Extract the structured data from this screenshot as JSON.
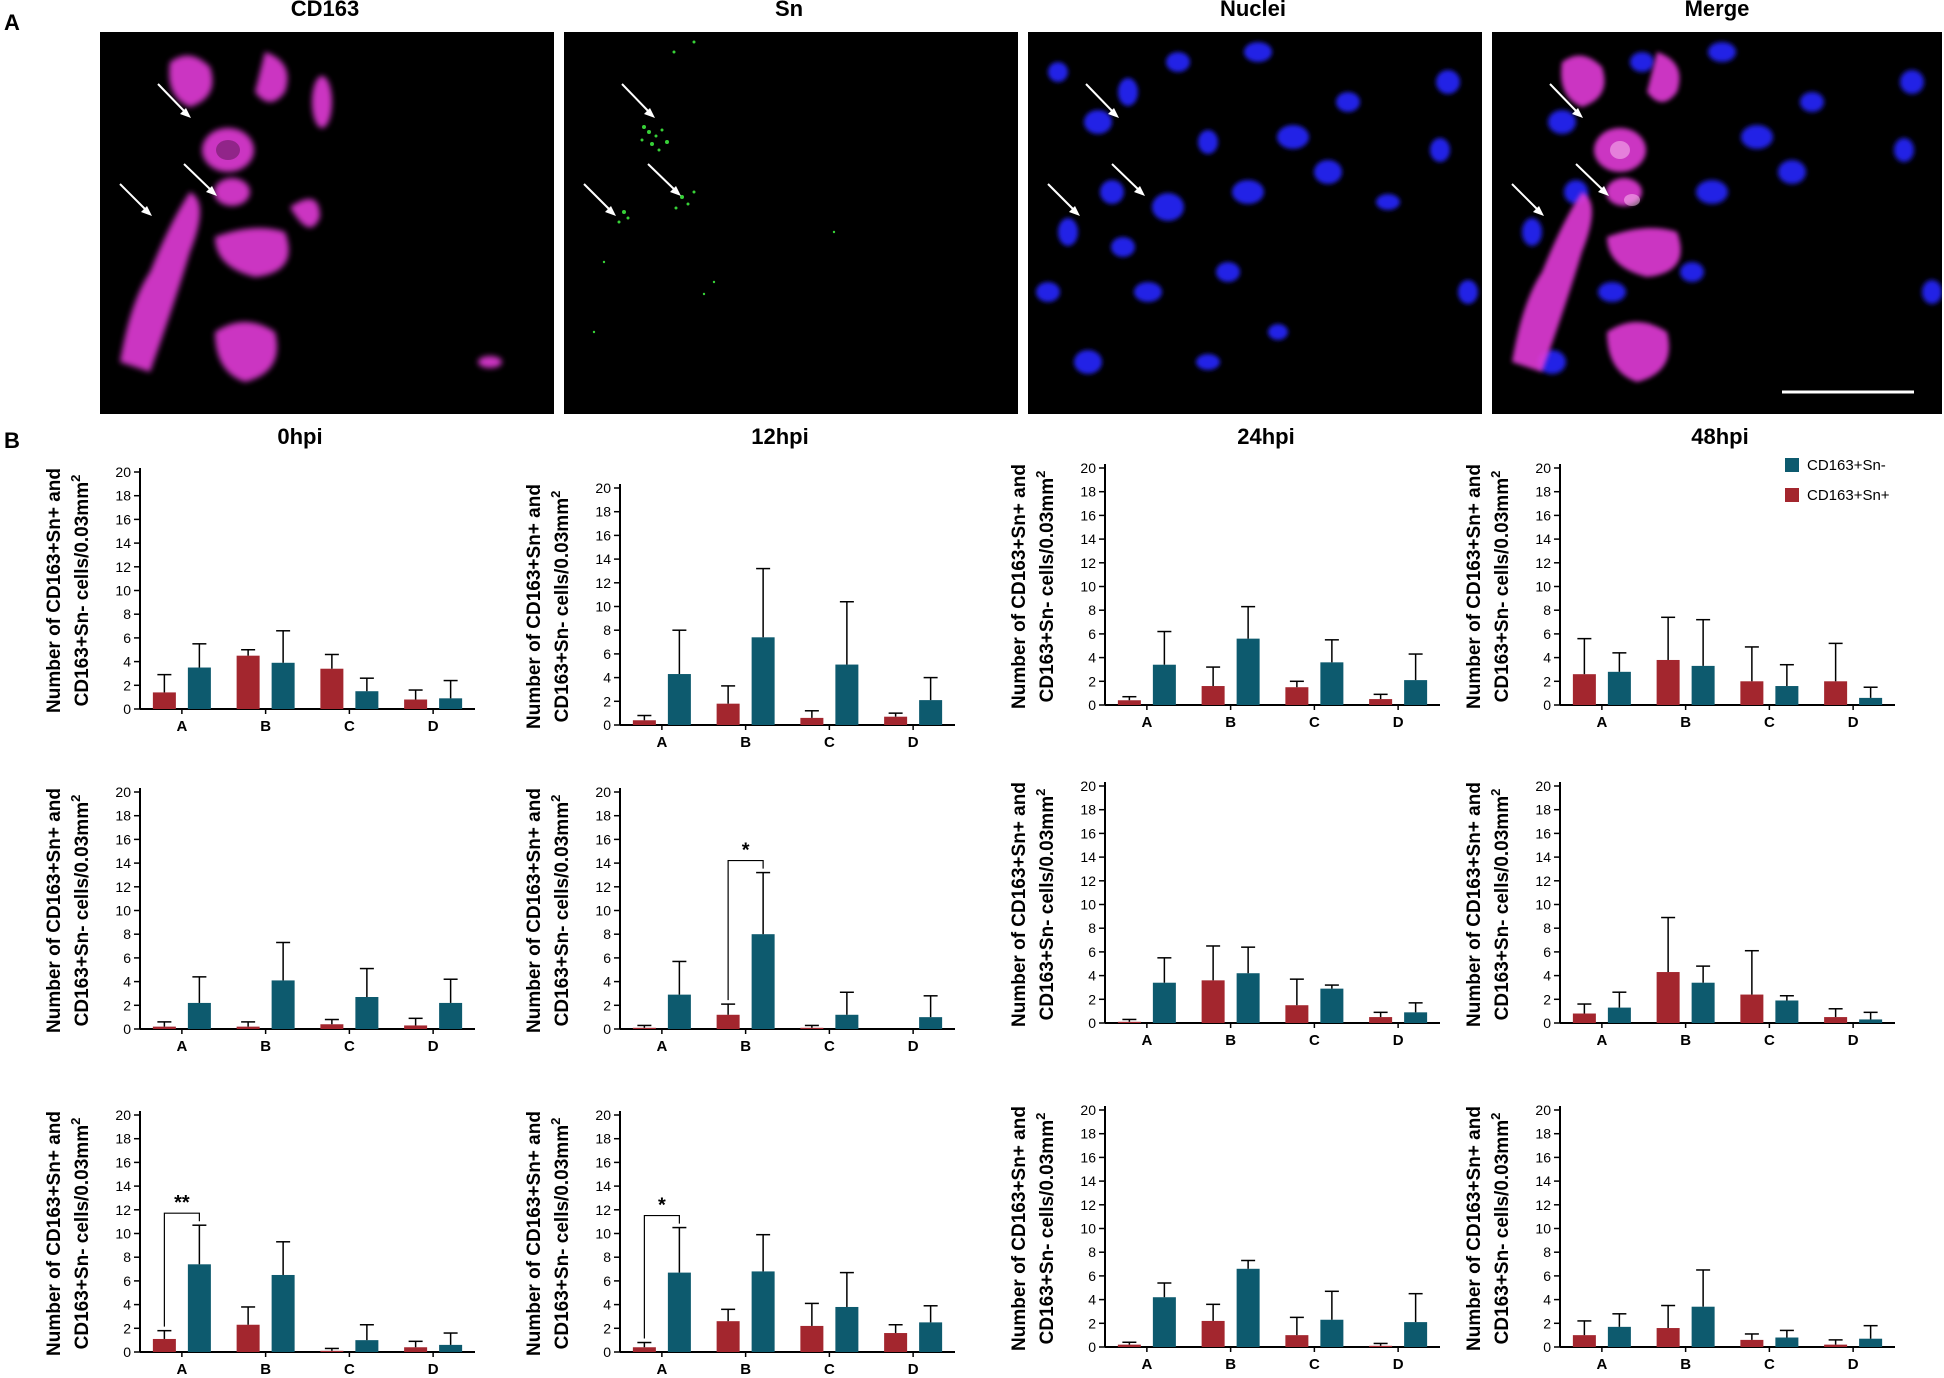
{
  "panel_a": {
    "letter": "A",
    "titles": [
      "CD163",
      "Sn",
      "Nuclei",
      "Merge"
    ]
  },
  "panel_b": {
    "letter": "B",
    "column_titles": [
      "0hpi",
      "12hpi",
      "24hpi",
      "48hpi"
    ],
    "legend": [
      {
        "label": "CD163+Sn-",
        "color": "#0d5a6e"
      },
      {
        "label": "CD163+Sn+",
        "color": "#a3262e"
      }
    ]
  },
  "chart_data": [
    {
      "type": "bar",
      "row": 0,
      "col": 0,
      "categories": [
        "A",
        "B",
        "C",
        "D"
      ],
      "ylim": [
        0,
        20
      ],
      "yticks": [
        0,
        2,
        4,
        6,
        8,
        10,
        12,
        14,
        16,
        18,
        20
      ],
      "ylabel": [
        "Number of CD163+Sn+ and",
        "CD163+Sn- cells/0.03mm",
        "2"
      ],
      "series": [
        {
          "name": "CD163+Sn+",
          "values": [
            1.4,
            4.5,
            3.4,
            0.8
          ],
          "errors": [
            1.5,
            0.5,
            1.2,
            0.8
          ]
        },
        {
          "name": "CD163+Sn-",
          "values": [
            3.5,
            3.9,
            1.5,
            0.9
          ],
          "errors": [
            2.0,
            2.7,
            1.1,
            1.5
          ]
        }
      ],
      "significance": []
    },
    {
      "type": "bar",
      "row": 0,
      "col": 1,
      "categories": [
        "A",
        "B",
        "C",
        "D"
      ],
      "ylim": [
        0,
        20
      ],
      "yticks": [
        0,
        2,
        4,
        6,
        8,
        10,
        12,
        14,
        16,
        18,
        20
      ],
      "ylabel": [
        "Number of CD163+Sn+ and",
        "CD163+Sn- cells/0.03mm",
        "2"
      ],
      "series": [
        {
          "name": "CD163+Sn+",
          "values": [
            0.4,
            1.8,
            0.6,
            0.7
          ],
          "errors": [
            0.4,
            1.5,
            0.6,
            0.3
          ]
        },
        {
          "name": "CD163+Sn-",
          "values": [
            4.3,
            7.4,
            5.1,
            2.1
          ],
          "errors": [
            3.7,
            5.8,
            5.3,
            1.9
          ]
        }
      ],
      "significance": []
    },
    {
      "type": "bar",
      "row": 0,
      "col": 2,
      "categories": [
        "A",
        "B",
        "C",
        "D"
      ],
      "ylim": [
        0,
        20
      ],
      "yticks": [
        0,
        2,
        4,
        6,
        8,
        10,
        12,
        14,
        16,
        18,
        20
      ],
      "ylabel": [
        "Number of CD163+Sn+ and",
        "CD163+Sn- cells/0.03mm",
        "2"
      ],
      "series": [
        {
          "name": "CD163+Sn+",
          "values": [
            0.4,
            1.6,
            1.5,
            0.5
          ],
          "errors": [
            0.3,
            1.6,
            0.5,
            0.4
          ]
        },
        {
          "name": "CD163+Sn-",
          "values": [
            3.4,
            5.6,
            3.6,
            2.1
          ],
          "errors": [
            2.8,
            2.7,
            1.9,
            2.2
          ]
        }
      ],
      "significance": []
    },
    {
      "type": "bar",
      "row": 0,
      "col": 3,
      "categories": [
        "A",
        "B",
        "C",
        "D"
      ],
      "ylim": [
        0,
        20
      ],
      "yticks": [
        0,
        2,
        4,
        6,
        8,
        10,
        12,
        14,
        16,
        18,
        20
      ],
      "ylabel": [
        "Number of CD163+Sn+ and",
        "CD163+Sn- cells/0.03mm",
        "2"
      ],
      "series": [
        {
          "name": "CD163+Sn+",
          "values": [
            2.6,
            3.8,
            2.0,
            2.0
          ],
          "errors": [
            3.0,
            3.6,
            2.9,
            3.2
          ]
        },
        {
          "name": "CD163+Sn-",
          "values": [
            2.8,
            3.3,
            1.6,
            0.6
          ],
          "errors": [
            1.6,
            3.9,
            1.8,
            0.9
          ]
        }
      ],
      "significance": []
    },
    {
      "type": "bar",
      "row": 1,
      "col": 0,
      "categories": [
        "A",
        "B",
        "C",
        "D"
      ],
      "ylim": [
        0,
        20
      ],
      "yticks": [
        0,
        2,
        4,
        6,
        8,
        10,
        12,
        14,
        16,
        18,
        20
      ],
      "ylabel": [
        "Number of CD163+Sn+ and",
        "CD163+Sn- cells/0.03mm",
        "2"
      ],
      "series": [
        {
          "name": "CD163+Sn+",
          "values": [
            0.2,
            0.2,
            0.4,
            0.3
          ],
          "errors": [
            0.4,
            0.4,
            0.4,
            0.6
          ]
        },
        {
          "name": "CD163+Sn-",
          "values": [
            2.2,
            4.1,
            2.7,
            2.2
          ],
          "errors": [
            2.2,
            3.2,
            2.4,
            2.0
          ]
        }
      ],
      "significance": []
    },
    {
      "type": "bar",
      "row": 1,
      "col": 1,
      "categories": [
        "A",
        "B",
        "C",
        "D"
      ],
      "ylim": [
        0,
        20
      ],
      "yticks": [
        0,
        2,
        4,
        6,
        8,
        10,
        12,
        14,
        16,
        18,
        20
      ],
      "ylabel": [
        "Number of CD163+Sn+ and",
        "CD163+Sn- cells/0.03mm",
        "2"
      ],
      "series": [
        {
          "name": "CD163+Sn+",
          "values": [
            0.1,
            1.2,
            0.1,
            0
          ],
          "errors": [
            0.2,
            0.9,
            0.2,
            0
          ]
        },
        {
          "name": "CD163+Sn-",
          "values": [
            2.9,
            8.0,
            1.2,
            1.0
          ],
          "errors": [
            2.8,
            5.2,
            1.9,
            1.8
          ]
        }
      ],
      "significance": [
        {
          "cat": 1,
          "text": "*"
        }
      ]
    },
    {
      "type": "bar",
      "row": 1,
      "col": 2,
      "categories": [
        "A",
        "B",
        "C",
        "D"
      ],
      "ylim": [
        0,
        20
      ],
      "yticks": [
        0,
        2,
        4,
        6,
        8,
        10,
        12,
        14,
        16,
        18,
        20
      ],
      "ylabel": [
        "Number of CD163+Sn+ and",
        "CD163+Sn- cells/0.03mm",
        "2"
      ],
      "series": [
        {
          "name": "CD163+Sn+",
          "values": [
            0.1,
            3.6,
            1.5,
            0.5
          ],
          "errors": [
            0.2,
            2.9,
            2.2,
            0.4
          ]
        },
        {
          "name": "CD163+Sn-",
          "values": [
            3.4,
            4.2,
            2.9,
            0.9
          ],
          "errors": [
            2.1,
            2.2,
            0.3,
            0.8
          ]
        }
      ],
      "significance": []
    },
    {
      "type": "bar",
      "row": 1,
      "col": 3,
      "categories": [
        "A",
        "B",
        "C",
        "D"
      ],
      "ylim": [
        0,
        20
      ],
      "yticks": [
        0,
        2,
        4,
        6,
        8,
        10,
        12,
        14,
        16,
        18,
        20
      ],
      "ylabel": [
        "Number of CD163+Sn+ and",
        "CD163+Sn- cells/0.03mm",
        "2"
      ],
      "series": [
        {
          "name": "CD163+Sn+",
          "values": [
            0.8,
            4.3,
            2.4,
            0.5
          ],
          "errors": [
            0.8,
            4.6,
            3.7,
            0.7
          ]
        },
        {
          "name": "CD163+Sn-",
          "values": [
            1.3,
            3.4,
            1.9,
            0.3
          ],
          "errors": [
            1.3,
            1.4,
            0.4,
            0.6
          ]
        }
      ],
      "significance": []
    },
    {
      "type": "bar",
      "row": 2,
      "col": 0,
      "categories": [
        "A",
        "B",
        "C",
        "D"
      ],
      "ylim": [
        0,
        20
      ],
      "yticks": [
        0,
        2,
        4,
        6,
        8,
        10,
        12,
        14,
        16,
        18,
        20
      ],
      "ylabel": [
        "Number of CD163+Sn+ and",
        "CD163+Sn- cells/0.03mm",
        "2"
      ],
      "series": [
        {
          "name": "CD163+Sn+",
          "values": [
            1.1,
            2.3,
            0.1,
            0.4
          ],
          "errors": [
            0.7,
            1.5,
            0.2,
            0.5
          ]
        },
        {
          "name": "CD163+Sn-",
          "values": [
            7.4,
            6.5,
            1.0,
            0.6
          ],
          "errors": [
            3.3,
            2.8,
            1.3,
            1.0
          ]
        }
      ],
      "significance": [
        {
          "cat": 0,
          "text": "**"
        }
      ]
    },
    {
      "type": "bar",
      "row": 2,
      "col": 1,
      "categories": [
        "A",
        "B",
        "C",
        "D"
      ],
      "ylim": [
        0,
        20
      ],
      "yticks": [
        0,
        2,
        4,
        6,
        8,
        10,
        12,
        14,
        16,
        18,
        20
      ],
      "ylabel": [
        "Number of CD163+Sn+ and",
        "CD163+Sn- cells/0.03mm",
        "2"
      ],
      "series": [
        {
          "name": "CD163+Sn+",
          "values": [
            0.4,
            2.6,
            2.2,
            1.6
          ],
          "errors": [
            0.4,
            1.0,
            1.9,
            0.7
          ]
        },
        {
          "name": "CD163+Sn-",
          "values": [
            6.7,
            6.8,
            3.8,
            2.5
          ],
          "errors": [
            3.8,
            3.1,
            2.9,
            1.4
          ]
        }
      ],
      "significance": [
        {
          "cat": 0,
          "text": "*"
        }
      ]
    },
    {
      "type": "bar",
      "row": 2,
      "col": 2,
      "categories": [
        "A",
        "B",
        "C",
        "D"
      ],
      "ylim": [
        0,
        20
      ],
      "yticks": [
        0,
        2,
        4,
        6,
        8,
        10,
        12,
        14,
        16,
        18,
        20
      ],
      "ylabel": [
        "Number of CD163+Sn+ and",
        "CD163+Sn- cells/0.03mm",
        "2"
      ],
      "series": [
        {
          "name": "CD163+Sn+",
          "values": [
            0.2,
            2.2,
            1.0,
            0.1
          ],
          "errors": [
            0.2,
            1.4,
            1.5,
            0.2
          ]
        },
        {
          "name": "CD163+Sn-",
          "values": [
            4.2,
            6.6,
            2.3,
            2.1
          ],
          "errors": [
            1.2,
            0.7,
            2.4,
            2.4
          ]
        }
      ],
      "significance": []
    },
    {
      "type": "bar",
      "row": 2,
      "col": 3,
      "categories": [
        "A",
        "B",
        "C",
        "D"
      ],
      "ylim": [
        0,
        20
      ],
      "yticks": [
        0,
        2,
        4,
        6,
        8,
        10,
        12,
        14,
        16,
        18,
        20
      ],
      "ylabel": [
        "Number of CD163+Sn+ and",
        "CD163+Sn- cells/0.03mm",
        "2"
      ],
      "series": [
        {
          "name": "CD163+Sn+",
          "values": [
            1.0,
            1.6,
            0.6,
            0.2
          ],
          "errors": [
            1.2,
            1.9,
            0.5,
            0.4
          ]
        },
        {
          "name": "CD163+Sn-",
          "values": [
            1.7,
            3.4,
            0.8,
            0.7
          ],
          "errors": [
            1.1,
            3.1,
            0.6,
            1.1
          ]
        }
      ],
      "significance": []
    }
  ]
}
